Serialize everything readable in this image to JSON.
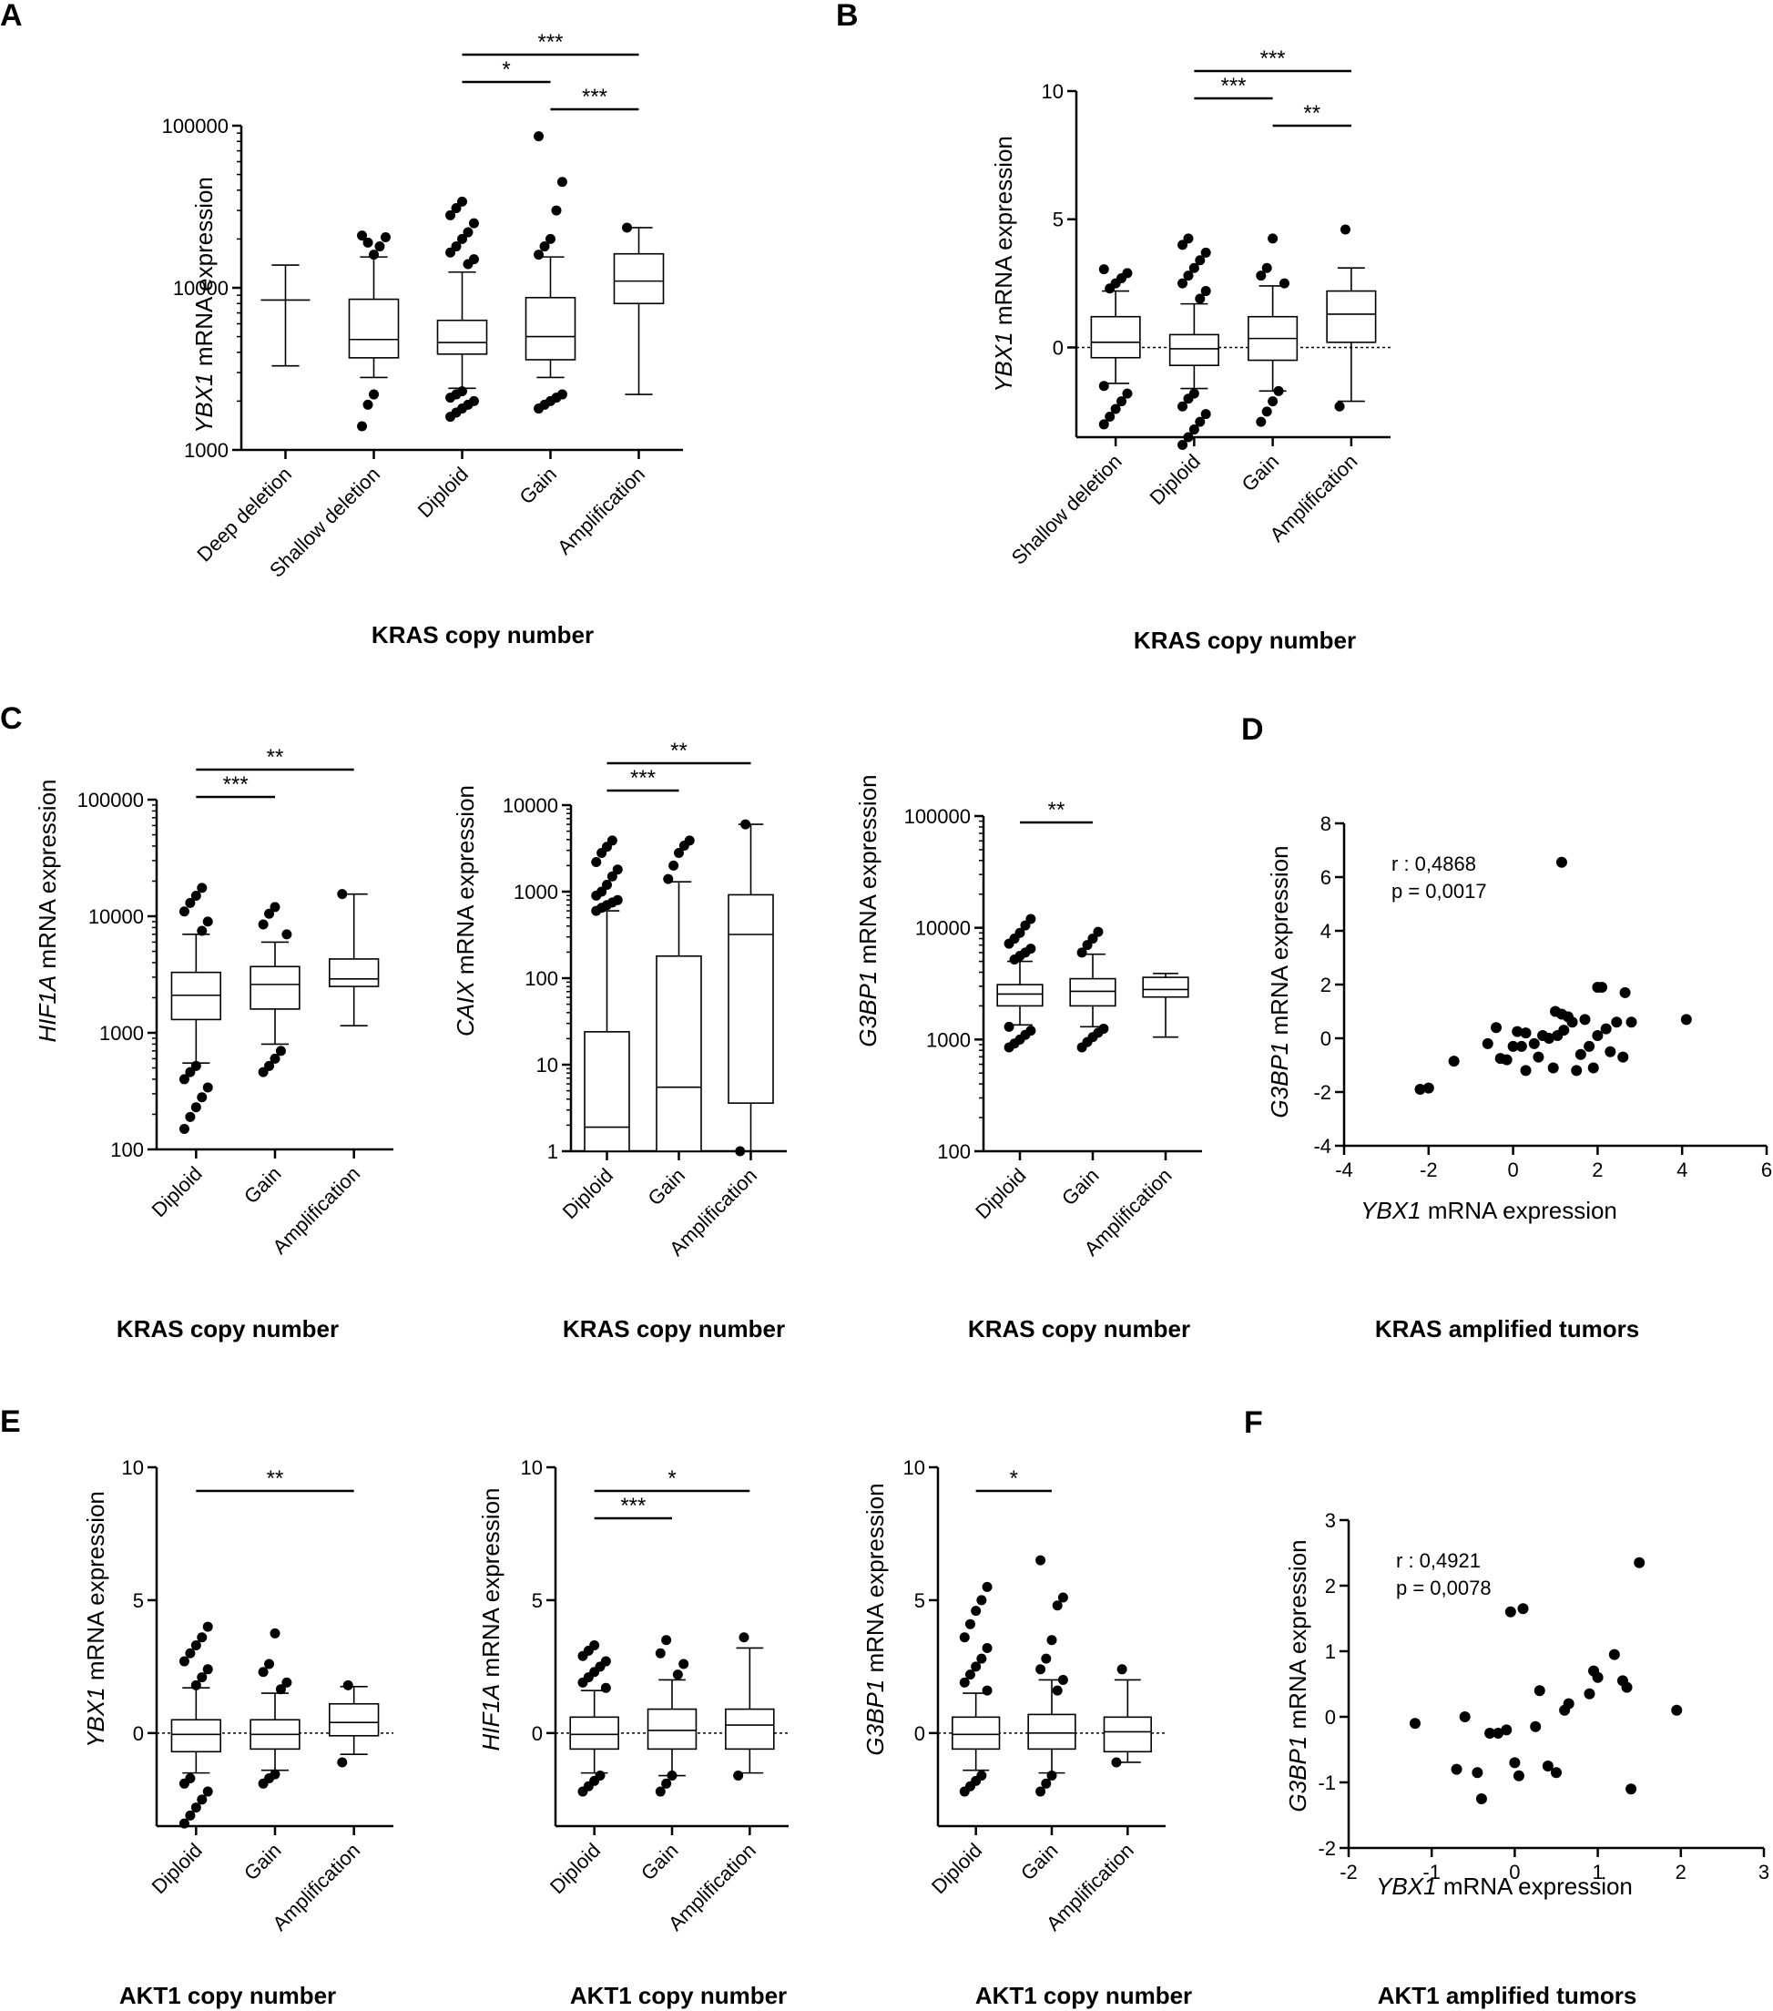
{
  "chart_data": [
    {
      "id": "A",
      "panel_label": "A",
      "type": "box",
      "scale": "log",
      "ylabel_gene": "YBX1",
      "ylabel_rest": " mRNA expression",
      "xlabel": "KRAS copy  number",
      "ylim": [
        1000,
        100000
      ],
      "yticks": [
        1000,
        10000,
        100000
      ],
      "ytick_labels": [
        "1000",
        "10000",
        "100000"
      ],
      "categories": [
        "Deep deletion",
        "Shallow deletion",
        "Diploid",
        "Gain",
        "Amplification"
      ],
      "boxes": [
        {
          "wlo": 3300,
          "q1": 8400,
          "med": 8400,
          "q3": 8400,
          "whi": 13800
        },
        {
          "wlo": 2800,
          "q1": 3700,
          "med": 4800,
          "q3": 8500,
          "whi": 15500
        },
        {
          "wlo": 2400,
          "q1": 3900,
          "med": 4600,
          "q3": 6300,
          "whi": 12500
        },
        {
          "wlo": 2800,
          "q1": 3600,
          "med": 5000,
          "q3": 8700,
          "whi": 15500
        },
        {
          "wlo": 2200,
          "q1": 8000,
          "med": 11000,
          "q3": 16200,
          "whi": 23500
        }
      ],
      "outliers": [
        [],
        [
          1400,
          1900,
          2200,
          18000,
          20500,
          21000,
          19000,
          16000
        ],
        [
          1600,
          1700,
          1800,
          1900,
          2000,
          2100,
          2200,
          2300,
          14000,
          15000,
          16500,
          18000,
          20000,
          22000,
          25000,
          28000,
          31000,
          34000
        ],
        [
          1800,
          1900,
          2000,
          2100,
          2200,
          16000,
          18000,
          20000,
          30000,
          45000,
          86000
        ],
        [
          23500
        ]
      ],
      "sig": [
        {
          "from": 2,
          "to": 3,
          "label": "*",
          "level": 1
        },
        {
          "from": 3,
          "to": 4,
          "label": "***",
          "level": 0
        },
        {
          "from": 2,
          "to": 4,
          "label": "***",
          "level": 2
        }
      ]
    },
    {
      "id": "B",
      "panel_label": "B",
      "type": "box",
      "scale": "linear",
      "ylabel_gene": "YBX1",
      "ylabel_rest": " mRNA expression",
      "xlabel": "KRAS copy  number",
      "ylim": [
        -3.5,
        10
      ],
      "yticks": [
        0,
        5,
        10
      ],
      "ytick_labels": [
        "0",
        "5",
        "10"
      ],
      "dashed_zero": true,
      "categories": [
        "Shallow deletion",
        "Diploid",
        "Gain",
        "Amplification"
      ],
      "boxes": [
        {
          "wlo": -1.4,
          "q1": -0.4,
          "med": 0.2,
          "q3": 1.2,
          "whi": 2.2
        },
        {
          "wlo": -1.6,
          "q1": -0.7,
          "med": -0.05,
          "q3": 0.5,
          "whi": 1.7
        },
        {
          "wlo": -1.7,
          "q1": -0.5,
          "med": 0.35,
          "q3": 1.2,
          "whi": 2.4
        },
        {
          "wlo": -2.1,
          "q1": 0.2,
          "med": 1.3,
          "q3": 2.2,
          "whi": 3.1
        }
      ],
      "outliers": [
        [
          -3.0,
          -2.7,
          -2.4,
          -2.1,
          -1.8,
          -1.5,
          2.3,
          2.5,
          2.7,
          2.9,
          3.05
        ],
        [
          -3.8,
          -3.5,
          -3.2,
          -2.9,
          -2.6,
          -2.3,
          -2.0,
          -1.8,
          1.9,
          2.2,
          2.5,
          2.8,
          3.1,
          3.4,
          3.7,
          4.0,
          4.25
        ],
        [
          -2.9,
          -2.5,
          -2.1,
          -1.7,
          2.5,
          2.8,
          3.1,
          4.25
        ],
        [
          -2.3,
          4.6
        ]
      ],
      "sig": [
        {
          "from": 1,
          "to": 2,
          "label": "***",
          "level": 1
        },
        {
          "from": 2,
          "to": 3,
          "label": "**",
          "level": 0
        },
        {
          "from": 1,
          "to": 3,
          "label": "***",
          "level": 2
        }
      ]
    },
    {
      "id": "C1",
      "panel_label": "C",
      "type": "box",
      "scale": "log",
      "ylabel_gene": "HIF1A",
      "ylabel_rest": " mRNA expression",
      "xlabel": "KRAS copy  number",
      "ylim": [
        100,
        100000
      ],
      "yticks": [
        100,
        1000,
        10000,
        100000
      ],
      "ytick_labels": [
        "100",
        "1000",
        "10000",
        "100000"
      ],
      "categories": [
        "Diploid",
        "Gain",
        "Amplification"
      ],
      "boxes": [
        {
          "wlo": 550,
          "q1": 1300,
          "med": 2100,
          "q3": 3300,
          "whi": 7000
        },
        {
          "wlo": 800,
          "q1": 1600,
          "med": 2600,
          "q3": 3700,
          "whi": 6000
        },
        {
          "wlo": 1150,
          "q1": 2500,
          "med": 2900,
          "q3": 4300,
          "whi": 15500
        }
      ],
      "outliers": [
        [
          150,
          190,
          230,
          280,
          340,
          400,
          460,
          520,
          7500,
          9000,
          11000,
          13000,
          15000,
          17500
        ],
        [
          460,
          520,
          600,
          700,
          7000,
          8500,
          10500,
          12000
        ],
        [
          15500
        ]
      ],
      "sig": [
        {
          "from": 0,
          "to": 1,
          "label": "***",
          "level": 0
        },
        {
          "from": 0,
          "to": 2,
          "label": "**",
          "level": 1
        }
      ]
    },
    {
      "id": "C2",
      "panel_label": "",
      "type": "box",
      "scale": "log",
      "ylabel_gene": "CAIX",
      "ylabel_rest": " mRNA expression",
      "xlabel": "KRAS copy  number",
      "ylim": [
        1,
        10000
      ],
      "yticks": [
        1,
        10,
        100,
        1000,
        10000
      ],
      "ytick_labels": [
        "1",
        "10",
        "100",
        "1000",
        "10000"
      ],
      "categories": [
        "Diploid",
        "Gain",
        "Amplification"
      ],
      "boxes": [
        {
          "wlo": 1,
          "q1": 1,
          "med": 1.9,
          "q3": 24,
          "whi": 600
        },
        {
          "wlo": 1,
          "q1": 1,
          "med": 5.5,
          "q3": 180,
          "whi": 1300
        },
        {
          "wlo": 1,
          "q1": 3.6,
          "med": 320,
          "q3": 920,
          "whi": 6000
        }
      ],
      "outliers": [
        [
          600,
          650,
          700,
          750,
          800,
          900,
          1000,
          1200,
          1500,
          1800,
          2200,
          2800,
          3300,
          3900
        ],
        [
          1400,
          2000,
          2800,
          3400,
          3900
        ],
        [
          1,
          6000
        ]
      ],
      "sig": [
        {
          "from": 0,
          "to": 1,
          "label": "***",
          "level": 0
        },
        {
          "from": 0,
          "to": 2,
          "label": "**",
          "level": 1
        }
      ]
    },
    {
      "id": "C3",
      "panel_label": "",
      "type": "box",
      "scale": "log",
      "ylabel_gene": "G3BP1",
      "ylabel_rest": " mRNA expression",
      "xlabel": "KRAS copy  number",
      "ylim": [
        100,
        100000
      ],
      "yticks": [
        100,
        1000,
        10000,
        100000
      ],
      "ytick_labels": [
        "100",
        "1000",
        "10000",
        "100000"
      ],
      "categories": [
        "Diploid",
        "Gain",
        "Amplification"
      ],
      "boxes": [
        {
          "wlo": 1350,
          "q1": 2000,
          "med": 2550,
          "q3": 3100,
          "whi": 5000
        },
        {
          "wlo": 1300,
          "q1": 2000,
          "med": 2700,
          "q3": 3500,
          "whi": 5800
        },
        {
          "wlo": 1050,
          "q1": 2400,
          "med": 2800,
          "q3": 3600,
          "whi": 3900
        }
      ],
      "outliers": [
        [
          850,
          920,
          1000,
          1100,
          1200,
          1300,
          5200,
          5600,
          6000,
          6500,
          7200,
          8000,
          9000,
          10500,
          12000
        ],
        [
          850,
          950,
          1050,
          1150,
          1250,
          6000,
          7000,
          8000,
          9200
        ],
        []
      ],
      "sig": [
        {
          "from": 0,
          "to": 1,
          "label": "**",
          "level": 0
        }
      ]
    },
    {
      "id": "D",
      "panel_label": "D",
      "type": "scatter",
      "ylabel_gene": "G3BP1",
      "ylabel_rest": " mRNA expression",
      "xlabel_gene": "YBX1",
      "xlabel_rest": " mRNA expression",
      "caption": "KRAS amplified tumors",
      "r_text": "r : 0,4868",
      "p_text": "p = 0,0017",
      "xlim": [
        -4,
        6
      ],
      "ylim": [
        -4,
        8
      ],
      "xticks": [
        -4,
        -2,
        0,
        2,
        4,
        6
      ],
      "yticks": [
        -4,
        -2,
        0,
        2,
        4,
        6,
        8
      ],
      "points": [
        [
          -2.2,
          -1.9
        ],
        [
          -2.0,
          -1.85
        ],
        [
          -1.4,
          -0.85
        ],
        [
          -0.6,
          -0.2
        ],
        [
          -0.4,
          0.4
        ],
        [
          -0.3,
          -0.75
        ],
        [
          -0.15,
          -0.8
        ],
        [
          0.0,
          -0.3
        ],
        [
          0.1,
          0.25
        ],
        [
          0.2,
          -0.3
        ],
        [
          0.3,
          -1.2
        ],
        [
          0.5,
          -0.2
        ],
        [
          0.6,
          -0.7
        ],
        [
          0.7,
          0.1
        ],
        [
          0.85,
          0.0
        ],
        [
          0.95,
          -1.1
        ],
        [
          1.05,
          0.1
        ],
        [
          1.15,
          0.9
        ],
        [
          1.2,
          0.3
        ],
        [
          1.3,
          0.8
        ],
        [
          1.4,
          0.6
        ],
        [
          1.5,
          -1.2
        ],
        [
          1.6,
          -0.6
        ],
        [
          1.7,
          0.7
        ],
        [
          1.8,
          -0.3
        ],
        [
          1.9,
          -1.1
        ],
        [
          2.0,
          1.9
        ],
        [
          2.1,
          1.9
        ],
        [
          2.2,
          0.35
        ],
        [
          2.3,
          -0.5
        ],
        [
          2.45,
          0.6
        ],
        [
          2.6,
          -0.7
        ],
        [
          2.65,
          1.7
        ],
        [
          2.8,
          0.6
        ],
        [
          1.15,
          6.55
        ],
        [
          4.1,
          0.7
        ],
        [
          1.0,
          1.0
        ],
        [
          0.3,
          0.2
        ],
        [
          2.0,
          0.1
        ]
      ]
    },
    {
      "id": "E1",
      "panel_label": "E",
      "type": "box",
      "scale": "linear",
      "ylabel_gene": "YBX1",
      "ylabel_rest": " mRNA expression",
      "xlabel": "AKT1 copy  number",
      "ylim": [
        -3.5,
        10
      ],
      "yticks": [
        0,
        5,
        10
      ],
      "ytick_labels": [
        "0",
        "5",
        "10"
      ],
      "dashed_zero": true,
      "categories": [
        "Diploid",
        "Gain",
        "Amplification"
      ],
      "boxes": [
        {
          "wlo": -1.5,
          "q1": -0.7,
          "med": -0.05,
          "q3": 0.5,
          "whi": 1.7
        },
        {
          "wlo": -1.4,
          "q1": -0.6,
          "med": -0.05,
          "q3": 0.5,
          "whi": 1.5
        },
        {
          "wlo": -0.8,
          "q1": -0.1,
          "med": 0.4,
          "q3": 1.1,
          "whi": 1.75
        }
      ],
      "outliers": [
        [
          -3.4,
          -3.1,
          -2.8,
          -2.5,
          -2.2,
          -1.9,
          -1.7,
          1.8,
          2.1,
          2.4,
          2.7,
          3.0,
          3.3,
          3.6,
          4.0
        ],
        [
          -1.9,
          -1.7,
          -1.55,
          1.65,
          1.9,
          2.3,
          2.6,
          3.75
        ],
        [
          -1.1,
          1.8
        ]
      ],
      "sig": [
        {
          "from": 0,
          "to": 2,
          "label": "**",
          "level": 0
        }
      ]
    },
    {
      "id": "E2",
      "panel_label": "",
      "type": "box",
      "scale": "linear",
      "ylabel_gene": "HIF1A",
      "ylabel_rest": " mRNA expression",
      "xlabel": "AKT1 copy  number",
      "ylim": [
        -3.5,
        10
      ],
      "yticks": [
        0,
        5,
        10
      ],
      "ytick_labels": [
        "0",
        "5",
        "10"
      ],
      "dashed_zero": true,
      "categories": [
        "Diploid",
        "Gain",
        "Amplification"
      ],
      "boxes": [
        {
          "wlo": -1.5,
          "q1": -0.6,
          "med": -0.05,
          "q3": 0.6,
          "whi": 1.6
        },
        {
          "wlo": -1.6,
          "q1": -0.6,
          "med": 0.1,
          "q3": 0.9,
          "whi": 2.0
        },
        {
          "wlo": -1.5,
          "q1": -0.6,
          "med": 0.3,
          "q3": 0.9,
          "whi": 3.2
        }
      ],
      "outliers": [
        [
          -2.2,
          -2.0,
          -1.8,
          -1.6,
          1.7,
          1.9,
          2.1,
          2.3,
          2.5,
          2.7,
          2.9,
          3.1,
          3.3
        ],
        [
          -2.2,
          -1.9,
          -1.6,
          2.2,
          2.6,
          3.0,
          3.5
        ],
        [
          -1.6,
          3.6
        ]
      ],
      "sig": [
        {
          "from": 0,
          "to": 1,
          "label": "***",
          "level": 0
        },
        {
          "from": 0,
          "to": 2,
          "label": "*",
          "level": 1
        }
      ]
    },
    {
      "id": "E3",
      "panel_label": "",
      "type": "box",
      "scale": "linear",
      "ylabel_gene": "G3BP1",
      "ylabel_rest": " mRNA expression",
      "xlabel": "AKT1 copy  number",
      "ylim": [
        -3.5,
        10
      ],
      "yticks": [
        0,
        5,
        10
      ],
      "ytick_labels": [
        "0",
        "5",
        "10"
      ],
      "dashed_zero": true,
      "categories": [
        "Diploid",
        "Gain",
        "Amplification"
      ],
      "boxes": [
        {
          "wlo": -1.4,
          "q1": -0.6,
          "med": -0.05,
          "q3": 0.6,
          "whi": 1.5
        },
        {
          "wlo": -1.5,
          "q1": -0.6,
          "med": 0.0,
          "q3": 0.7,
          "whi": 2.0
        },
        {
          "wlo": -1.1,
          "q1": -0.7,
          "med": 0.05,
          "q3": 0.6,
          "whi": 2.0
        }
      ],
      "outliers": [
        [
          -2.2,
          -2.0,
          -1.8,
          -1.6,
          1.6,
          1.9,
          2.2,
          2.5,
          2.8,
          3.2,
          3.6,
          4.1,
          4.6,
          5.0,
          5.5
        ],
        [
          -2.2,
          -1.9,
          -1.6,
          1.6,
          2.0,
          2.4,
          2.8,
          3.5,
          4.8,
          5.1,
          6.5
        ],
        [
          -1.1,
          2.4
        ]
      ],
      "sig": [
        {
          "from": 0,
          "to": 1,
          "label": "*",
          "level": 0
        }
      ]
    },
    {
      "id": "F",
      "panel_label": "F",
      "type": "scatter",
      "ylabel_gene": "G3BP1",
      "ylabel_rest": " mRNA expression",
      "xlabel_gene": "YBX1",
      "xlabel_rest": " mRNA expression",
      "caption": "AKT1 amplified tumors",
      "r_text": "r : 0,4921",
      "p_text": "p = 0,0078",
      "xlim": [
        -2,
        3
      ],
      "ylim": [
        -2,
        3
      ],
      "xticks": [
        -2,
        -1,
        0,
        1,
        2,
        3
      ],
      "yticks": [
        -2,
        -1,
        0,
        1,
        2,
        3
      ],
      "points": [
        [
          -1.2,
          -0.1
        ],
        [
          -0.7,
          -0.8
        ],
        [
          -0.6,
          0.0
        ],
        [
          -0.45,
          -0.85
        ],
        [
          -0.4,
          -1.25
        ],
        [
          -0.3,
          -0.25
        ],
        [
          -0.2,
          -0.25
        ],
        [
          -0.1,
          -0.2
        ],
        [
          -0.05,
          1.6
        ],
        [
          0.0,
          -0.7
        ],
        [
          0.05,
          -0.9
        ],
        [
          0.1,
          1.65
        ],
        [
          0.25,
          -0.15
        ],
        [
          0.3,
          0.4
        ],
        [
          0.4,
          -0.75
        ],
        [
          0.5,
          -0.85
        ],
        [
          0.6,
          0.1
        ],
        [
          0.65,
          0.2
        ],
        [
          0.9,
          0.35
        ],
        [
          0.95,
          0.7
        ],
        [
          1.2,
          0.95
        ],
        [
          1.3,
          0.55
        ],
        [
          1.35,
          0.45
        ],
        [
          1.4,
          -1.1
        ],
        [
          1.5,
          2.35
        ],
        [
          1.95,
          0.1
        ],
        [
          1.0,
          0.6
        ]
      ]
    }
  ]
}
